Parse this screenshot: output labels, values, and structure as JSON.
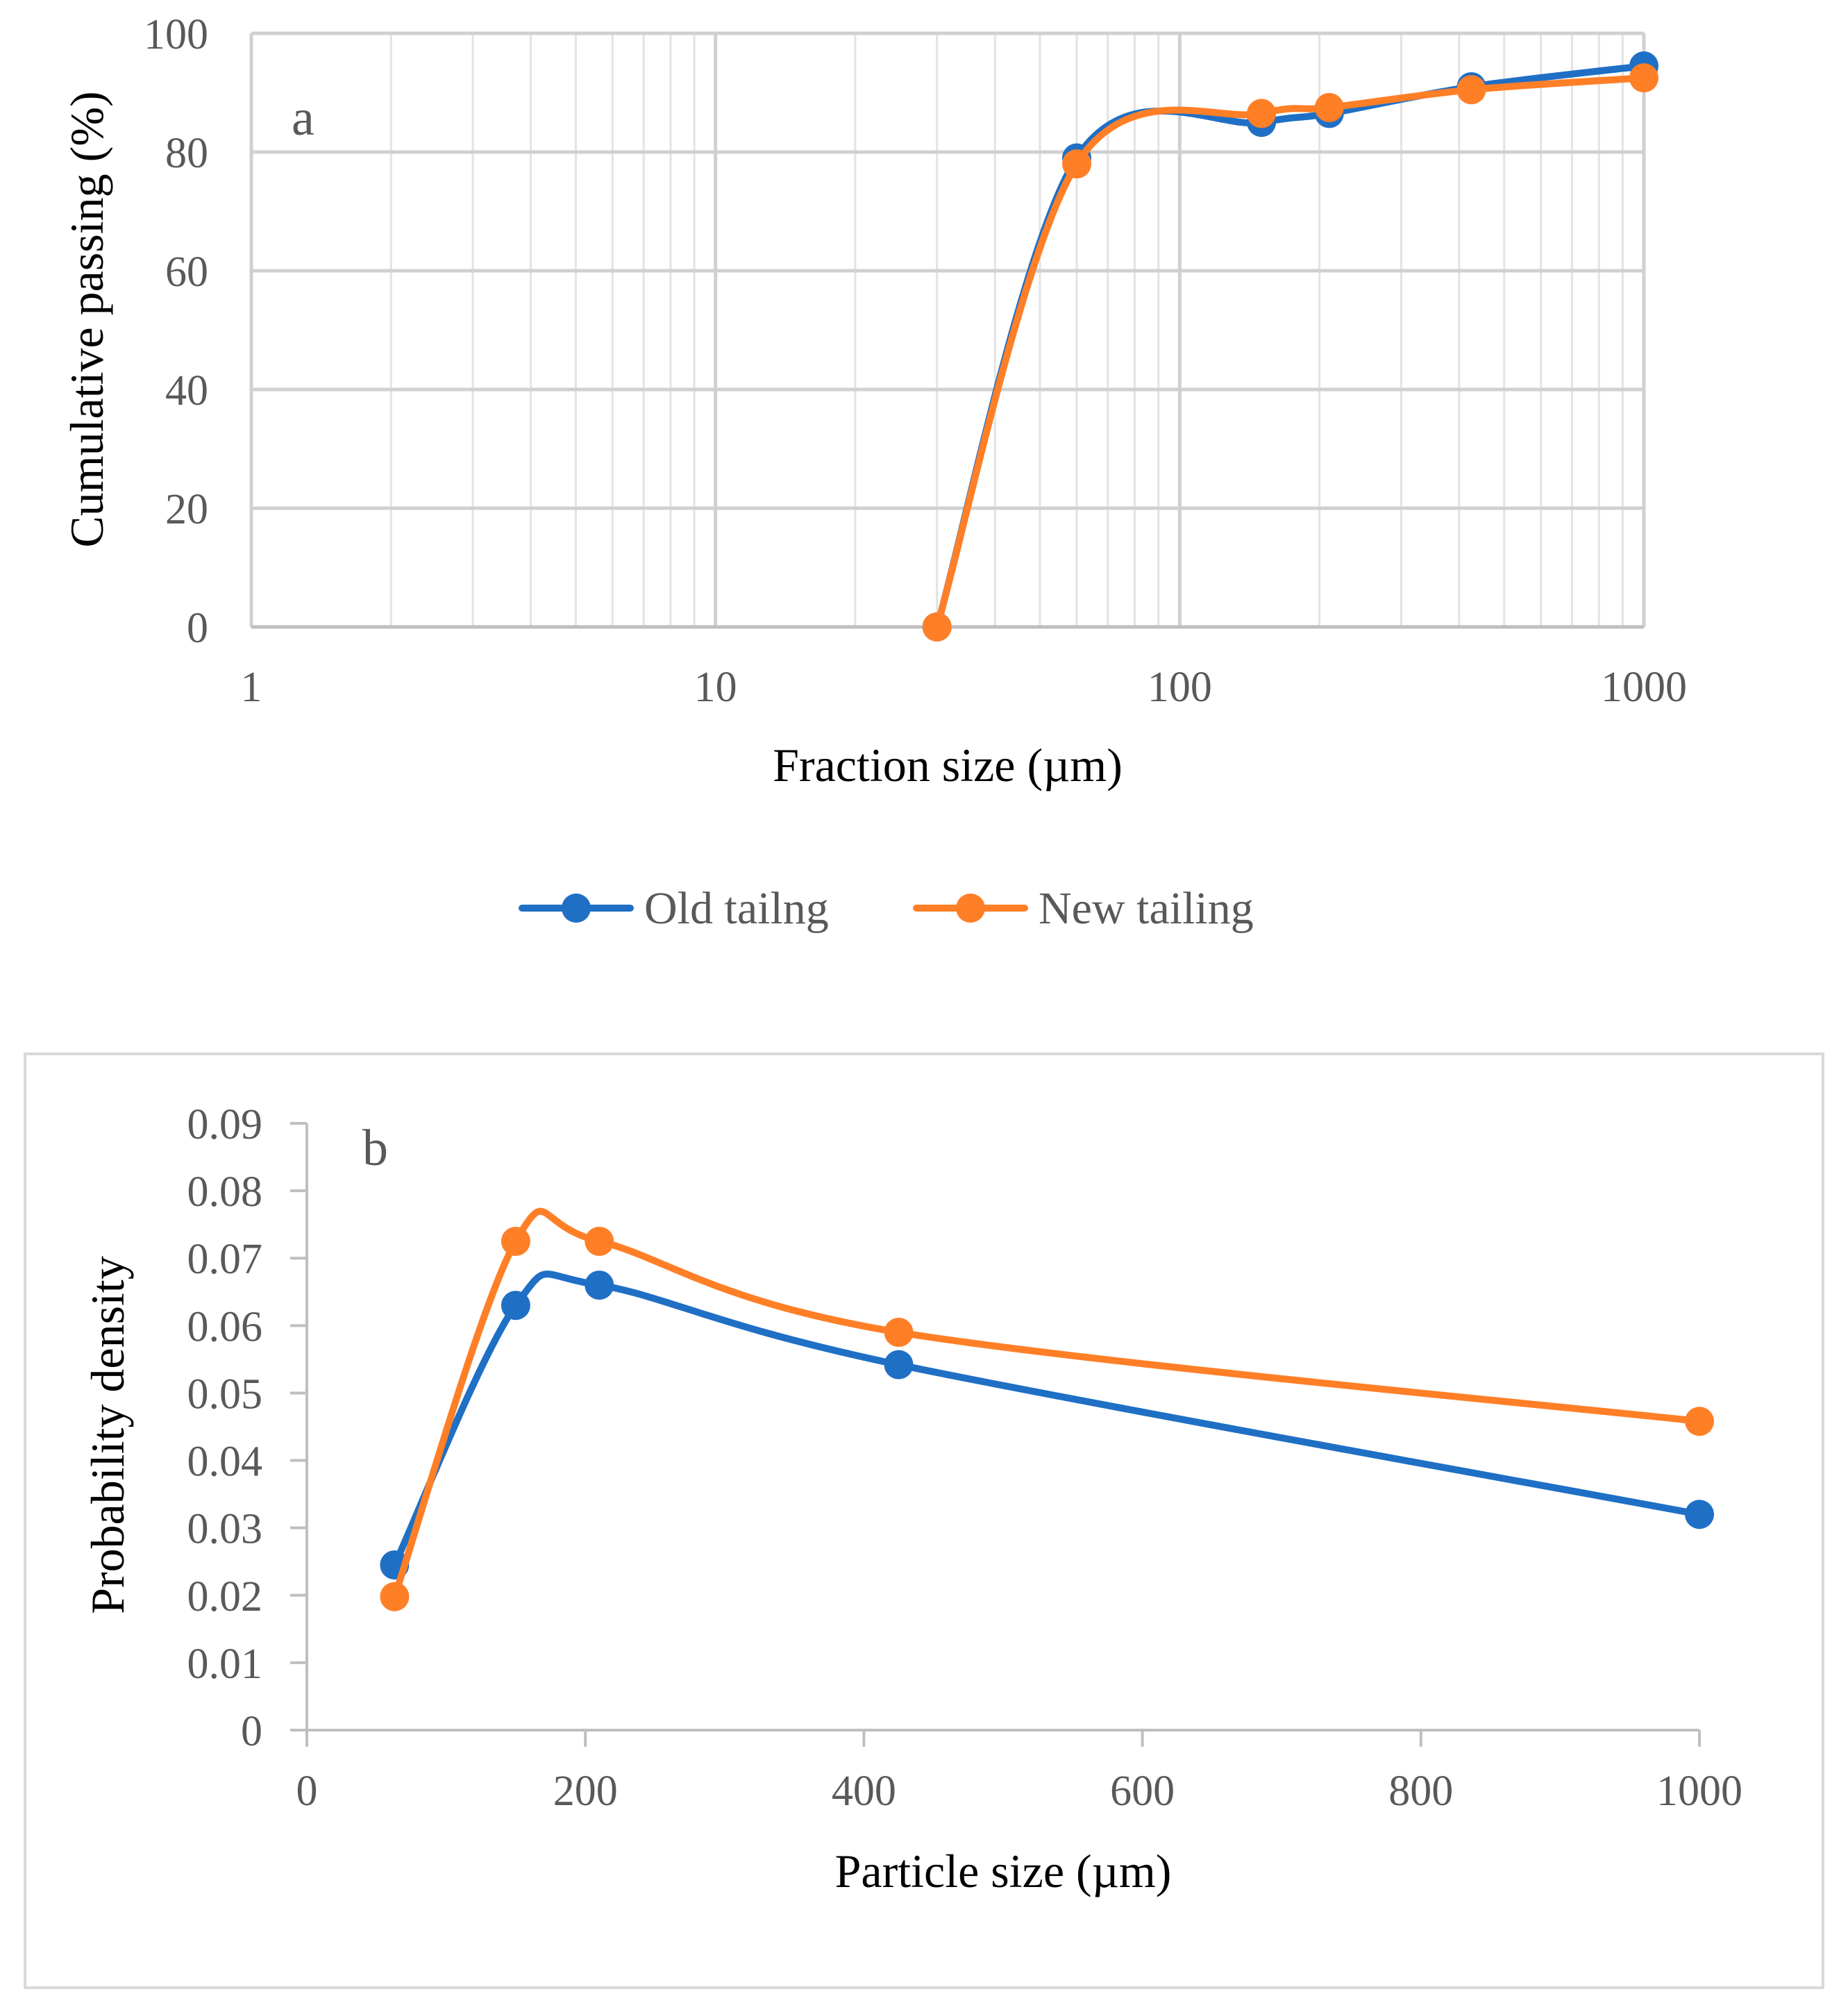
{
  "legend": {
    "items": [
      {
        "name": "Old tailng",
        "color": "#1f6fc5"
      },
      {
        "name": "New tailing",
        "color": "#ff7f27"
      }
    ]
  },
  "chart_data": [
    {
      "type": "line",
      "panel_label": "a",
      "xscale": "log",
      "xlabel": "Fraction size (µm)",
      "ylabel": "Cumulative passing (%)",
      "xlim": [
        1,
        1000
      ],
      "ylim": [
        0,
        100
      ],
      "x_ticks": [
        "1",
        "10",
        "100",
        "1000"
      ],
      "y_ticks": [
        "0",
        "20",
        "40",
        "60",
        "80",
        "100"
      ],
      "grid": true,
      "series": [
        {
          "name": "Old tailng",
          "color": "#1f6fc5",
          "x": [
            30,
            60,
            150,
            210,
            425,
            1000
          ],
          "y": [
            0,
            79,
            85,
            86.5,
            91,
            94.5
          ]
        },
        {
          "name": "New tailing",
          "color": "#ff7f27",
          "x": [
            30,
            60,
            150,
            210,
            425,
            1000
          ],
          "y": [
            0,
            78,
            86.5,
            87.5,
            90.5,
            92.5
          ]
        }
      ]
    },
    {
      "type": "line",
      "panel_label": "b",
      "xlabel": "Particle size (µm)",
      "ylabel": "Probability density",
      "xlim": [
        0,
        1000
      ],
      "ylim": [
        0,
        0.09
      ],
      "x_ticks": [
        "0",
        "200",
        "400",
        "600",
        "800",
        "1000"
      ],
      "y_ticks": [
        "0",
        "0.01",
        "0.02",
        "0.03",
        "0.04",
        "0.05",
        "0.06",
        "0.07",
        "0.08",
        "0.09"
      ],
      "grid": false,
      "series": [
        {
          "name": "Old tailng",
          "color": "#1f6fc5",
          "x": [
            63,
            150,
            210,
            425,
            1000
          ],
          "y": [
            0.0245,
            0.063,
            0.066,
            0.0542,
            0.032
          ]
        },
        {
          "name": "New tailing",
          "color": "#ff7f27",
          "x": [
            63,
            150,
            210,
            425,
            1000
          ],
          "y": [
            0.0198,
            0.0725,
            0.0725,
            0.059,
            0.0458
          ]
        }
      ]
    }
  ]
}
